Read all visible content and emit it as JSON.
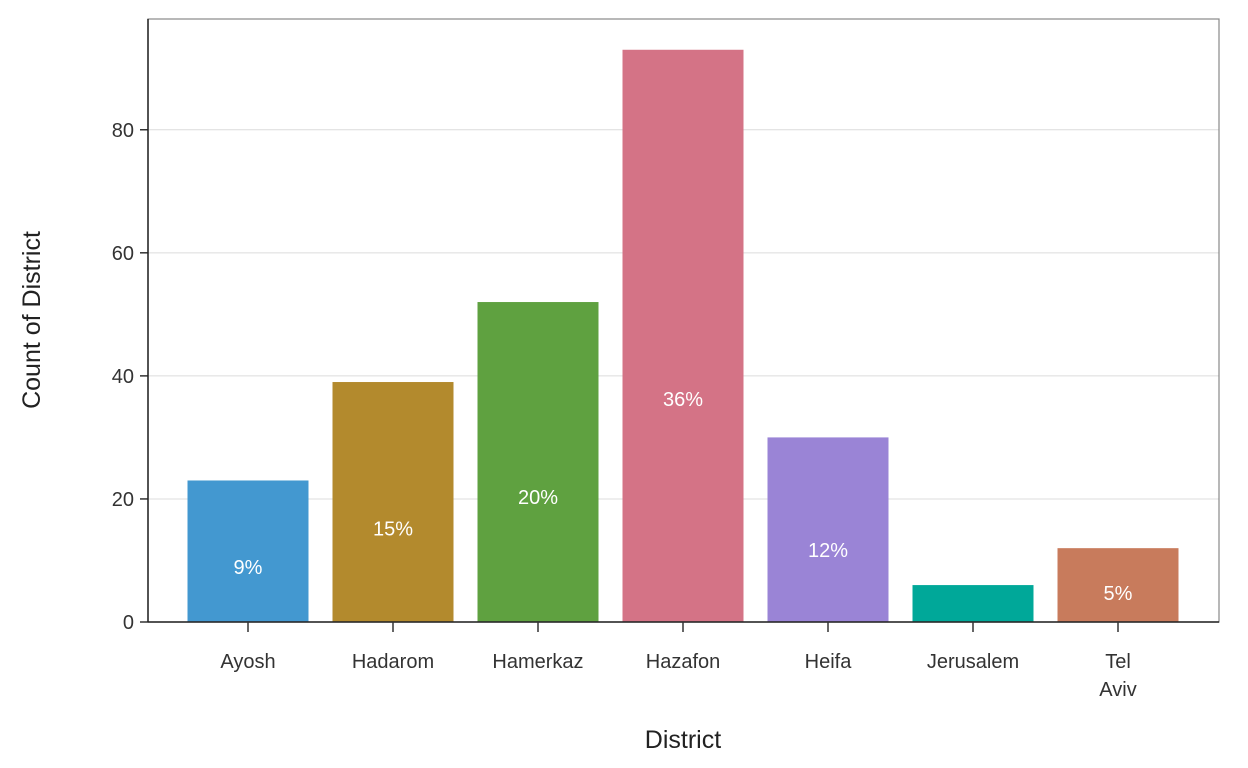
{
  "chart_data": {
    "type": "bar",
    "title": "",
    "xlabel": "District",
    "ylabel": "Count of District",
    "categories": [
      "Ayosh",
      "Hadarom",
      "Hamerkaz",
      "Hazafon",
      "Heifa",
      "Jerusalem",
      "Tel Aviv"
    ],
    "category_lines": [
      [
        "Ayosh"
      ],
      [
        "Hadarom"
      ],
      [
        "Hamerkaz"
      ],
      [
        "Hazafon"
      ],
      [
        "Heifa"
      ],
      [
        "Jerusalem"
      ],
      [
        "Tel",
        "Aviv"
      ]
    ],
    "values": [
      23,
      39,
      52,
      93,
      30,
      6,
      12
    ],
    "data_labels": [
      "9%",
      "15%",
      "20%",
      "36%",
      "12%",
      "",
      "5%"
    ],
    "colors": [
      "#4398d0",
      "#b38a2d",
      "#5fa140",
      "#d47386",
      "#9a84d6",
      "#00a899",
      "#c87b5c"
    ],
    "ylim": [
      0,
      98
    ],
    "yticks": [
      0,
      20,
      40,
      60,
      80
    ],
    "grid": true,
    "legend": "none"
  }
}
